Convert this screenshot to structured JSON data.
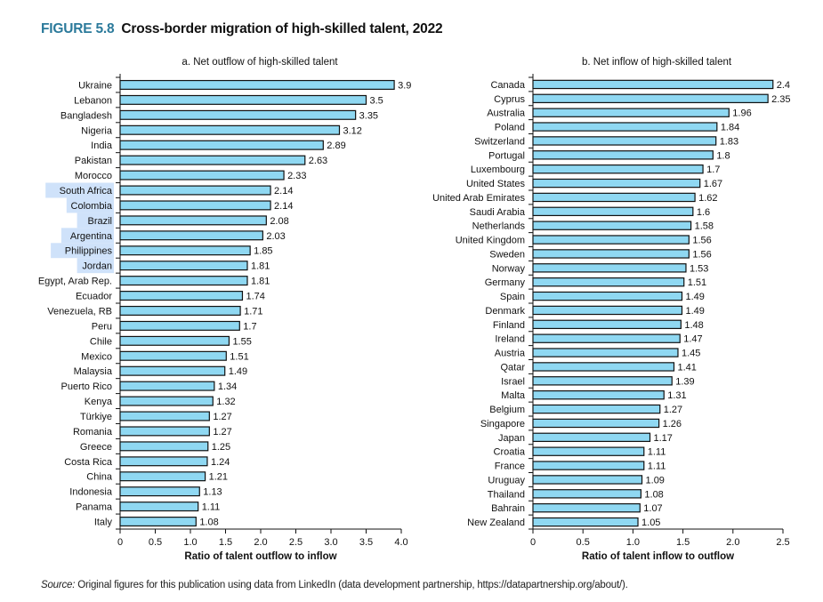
{
  "figure": {
    "number": "FIGURE 5.8",
    "title": "Cross-border migration of high-skilled talent, 2022",
    "source_label": "Source:",
    "source_text": "Original figures for this publication using data from LinkedIn (data development partnership, https://datapartnership.org/about/)."
  },
  "colors": {
    "bar_fill": "#8fd8f2",
    "bar_stroke": "#111111",
    "title_accent": "#2b7a9b",
    "label_highlight": "#cfe2fa"
  },
  "chart_data": [
    {
      "type": "bar",
      "orientation": "horizontal",
      "title": "a. Net outflow of high-skilled talent",
      "xlabel": "Ratio of talent outflow to inflow",
      "ylabel": "",
      "xlim": [
        0,
        4.0
      ],
      "xticks": [
        "0",
        "0.5",
        "1.0",
        "1.5",
        "2.0",
        "2.5",
        "3.0",
        "3.5",
        "4.0"
      ],
      "grid": false,
      "legend": "none",
      "categories": [
        "Ukraine",
        "Lebanon",
        "Bangladesh",
        "Nigeria",
        "India",
        "Pakistan",
        "Morocco",
        "South Africa",
        "Colombia",
        "Brazil",
        "Argentina",
        "Philippines",
        "Jordan",
        "Egypt, Arab Rep.",
        "Ecuador",
        "Venezuela, RB",
        "Peru",
        "Chile",
        "Mexico",
        "Malaysia",
        "Puerto Rico",
        "Kenya",
        "Türkiye",
        "Romania",
        "Greece",
        "Costa Rica",
        "China",
        "Indonesia",
        "Panama",
        "Italy"
      ],
      "values": [
        3.9,
        3.5,
        3.35,
        3.12,
        2.89,
        2.63,
        2.33,
        2.14,
        2.14,
        2.08,
        2.03,
        1.85,
        1.81,
        1.81,
        1.74,
        1.71,
        1.7,
        1.55,
        1.51,
        1.49,
        1.34,
        1.32,
        1.27,
        1.27,
        1.25,
        1.24,
        1.21,
        1.13,
        1.11,
        1.08
      ],
      "data_labels": [
        "3.9",
        "3.5",
        "3.35",
        "3.12",
        "2.89",
        "2.63",
        "2.33",
        "2.14",
        "2.14",
        "2.08",
        "2.03",
        "1.85",
        "1.81",
        "1.81",
        "1.74",
        "1.71",
        "1.7",
        "1.55",
        "1.51",
        "1.49",
        "1.34",
        "1.32",
        "1.27",
        "1.27",
        "1.25",
        "1.24",
        "1.21",
        "1.13",
        "1.11",
        "1.08"
      ],
      "highlighted_categories": [
        "South Africa",
        "Colombia",
        "Brazil",
        "Argentina",
        "Philippines",
        "Jordan"
      ]
    },
    {
      "type": "bar",
      "orientation": "horizontal",
      "title": "b. Net inflow of high-skilled talent",
      "xlabel": "Ratio of talent inflow to outflow",
      "ylabel": "",
      "xlim": [
        0,
        2.5
      ],
      "xticks": [
        "0",
        "0.5",
        "1.0",
        "1.5",
        "2.0",
        "2.5"
      ],
      "grid": false,
      "legend": "none",
      "categories": [
        "Canada",
        "Cyprus",
        "Australia",
        "Poland",
        "Switzerland",
        "Portugal",
        "Luxembourg",
        "United States",
        "United Arab Emirates",
        "Saudi Arabia",
        "Netherlands",
        "United Kingdom",
        "Sweden",
        "Norway",
        "Germany",
        "Spain",
        "Denmark",
        "Finland",
        "Ireland",
        "Austria",
        "Qatar",
        "Israel",
        "Malta",
        "Belgium",
        "Singapore",
        "Japan",
        "Croatia",
        "France",
        "Uruguay",
        "Thailand",
        "Bahrain",
        "New Zealand"
      ],
      "values": [
        2.4,
        2.35,
        1.96,
        1.84,
        1.83,
        1.8,
        1.7,
        1.67,
        1.62,
        1.6,
        1.58,
        1.56,
        1.56,
        1.53,
        1.51,
        1.49,
        1.49,
        1.48,
        1.47,
        1.45,
        1.41,
        1.39,
        1.31,
        1.27,
        1.26,
        1.17,
        1.11,
        1.11,
        1.09,
        1.08,
        1.07,
        1.05
      ],
      "data_labels": [
        "2.4",
        "2.35",
        "1.96",
        "1.84",
        "1.83",
        "1.8",
        "1.7",
        "1.67",
        "1.62",
        "1.6",
        "1.58",
        "1.56",
        "1.56",
        "1.53",
        "1.51",
        "1.49",
        "1.49",
        "1.48",
        "1.47",
        "1.45",
        "1.41",
        "1.39",
        "1.31",
        "1.27",
        "1.26",
        "1.17",
        "1.11",
        "1.11",
        "1.09",
        "1.08",
        "1.07",
        "1.05"
      ],
      "highlighted_categories": []
    }
  ]
}
